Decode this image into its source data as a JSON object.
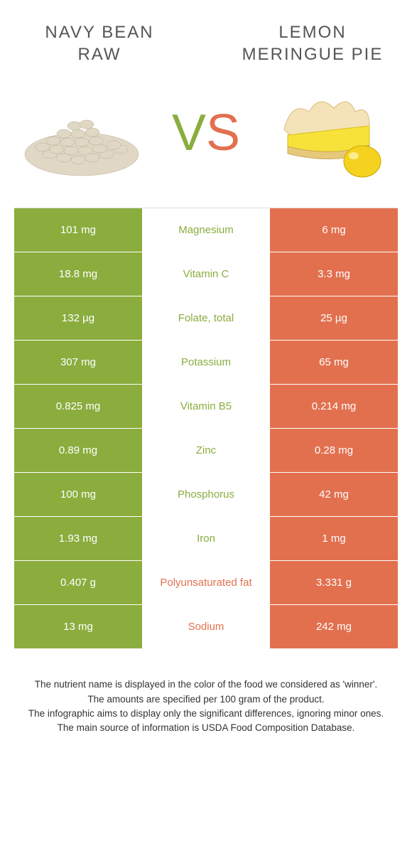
{
  "colors": {
    "left": "#8aad3e",
    "right": "#e2704f",
    "mid_bg": "#ffffff",
    "row_border": "#ffffff"
  },
  "header": {
    "left_title": "NAVY BEAN RAW",
    "right_title": "LEMON MERINGUE PIE"
  },
  "vs": {
    "v": "V",
    "s": "S"
  },
  "rows": [
    {
      "left": "101 mg",
      "mid": "Magnesium",
      "right": "6 mg",
      "winner": "left"
    },
    {
      "left": "18.8 mg",
      "mid": "Vitamin C",
      "right": "3.3 mg",
      "winner": "left"
    },
    {
      "left": "132 µg",
      "mid": "Folate, total",
      "right": "25 µg",
      "winner": "left"
    },
    {
      "left": "307 mg",
      "mid": "Potassium",
      "right": "65 mg",
      "winner": "left"
    },
    {
      "left": "0.825 mg",
      "mid": "Vitamin B5",
      "right": "0.214 mg",
      "winner": "left"
    },
    {
      "left": "0.89 mg",
      "mid": "Zinc",
      "right": "0.28 mg",
      "winner": "left"
    },
    {
      "left": "100 mg",
      "mid": "Phosphorus",
      "right": "42 mg",
      "winner": "left"
    },
    {
      "left": "1.93 mg",
      "mid": "Iron",
      "right": "1 mg",
      "winner": "left"
    },
    {
      "left": "0.407 g",
      "mid": "Polyunsaturated fat",
      "right": "3.331 g",
      "winner": "right"
    },
    {
      "left": "13 mg",
      "mid": "Sodium",
      "right": "242 mg",
      "winner": "right"
    }
  ],
  "footnotes": [
    "The nutrient name is displayed in the color of the food we considered as 'winner'.",
    "The amounts are specified per 100 gram of the product.",
    "The infographic aims to display only the significant differences, ignoring minor ones.",
    "The main source of information is USDA Food Composition Database."
  ]
}
